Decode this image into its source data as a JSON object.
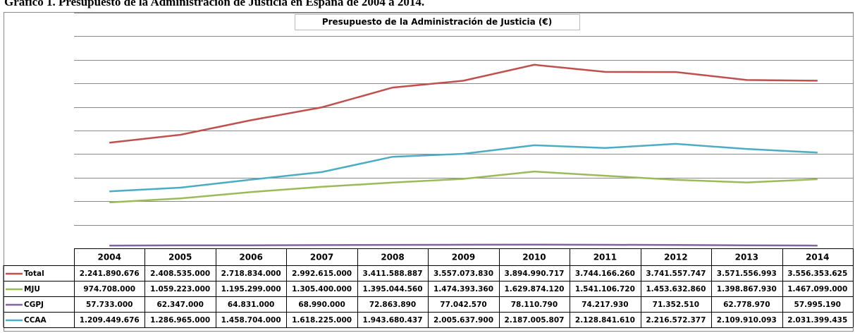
{
  "caption": "Gráfico 1. Presupuesto de la Administración de Justicia en España de 2004 a 2014.",
  "chart_data": {
    "type": "line",
    "title": "Presupuesto de la Administración de Justicia (€)",
    "categories": [
      "2004",
      "2005",
      "2006",
      "2007",
      "2008",
      "2009",
      "2010",
      "2011",
      "2012",
      "2013",
      "2014"
    ],
    "series": [
      {
        "name": "Total",
        "color": "#c0504d",
        "values": [
          2241890676,
          2408535000,
          2718834000,
          2992615000,
          3411588887,
          3557073830,
          3894990717,
          3744166260,
          3741557747,
          3571556993,
          3556353625
        ],
        "value_labels": [
          "2.241.890.676",
          "2.408.535.000",
          "2.718.834.000",
          "2.992.615.000",
          "3.411.588.887",
          "3.557.073.830",
          "3.894.990.717",
          "3.744.166.260",
          "3.741.557.747",
          "3.571.556.993",
          "3.556.353.625"
        ]
      },
      {
        "name": "MJU",
        "color": "#9bbb59",
        "values": [
          974708000,
          1059223000,
          1195299000,
          1305400000,
          1395044560,
          1474393360,
          1629874120,
          1541106720,
          1453632860,
          1398867930,
          1467099000
        ],
        "value_labels": [
          "974.708.000",
          "1.059.223.000",
          "1.195.299.000",
          "1.305.400.000",
          "1.395.044.560",
          "1.474.393.360",
          "1.629.874.120",
          "1.541.106.720",
          "1.453.632.860",
          "1.398.867.930",
          "1.467.099.000"
        ]
      },
      {
        "name": "CGPJ",
        "color": "#8064a2",
        "values": [
          57733000,
          62347000,
          64831000,
          68990000,
          72863890,
          77042570,
          78110790,
          74217930,
          71352510,
          62778970,
          57995190
        ],
        "value_labels": [
          "57.733.000",
          "62.347.000",
          "64.831.000",
          "68.990.000",
          "72.863.890",
          "77.042.570",
          "78.110.790",
          "74.217.930",
          "71.352.510",
          "62.778.970",
          "57.995.190"
        ]
      },
      {
        "name": "CCAA",
        "color": "#4bacc6",
        "values": [
          1209449676,
          1286965000,
          1458704000,
          1618225000,
          1943680437,
          2005637900,
          2187005807,
          2128841610,
          2216572377,
          2109910093,
          2031399435
        ],
        "value_labels": [
          "1.209.449.676",
          "1.286.965.000",
          "1.458.704.000",
          "1.618.225.000",
          "1.943.680.437",
          "2.005.637.900",
          "2.187.005.807",
          "2.128.841.610",
          "2.216.572.377",
          "2.109.910.093",
          "2.031.399.435"
        ]
      }
    ],
    "ylim": [
      0,
      5000000000
    ],
    "yticks": [
      0,
      500000000,
      1000000000,
      1500000000,
      2000000000,
      2500000000,
      3000000000,
      3500000000,
      4000000000,
      4500000000,
      5000000000
    ],
    "grid": true
  }
}
